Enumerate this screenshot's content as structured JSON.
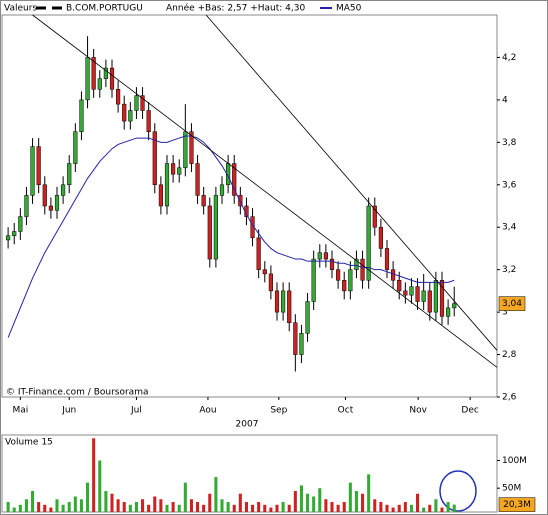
{
  "chart_data": [
    {
      "type": "candlestick",
      "legend_title": "Valeurs",
      "name": "B.COM.PORTUGU",
      "subtitle": "Année +Bas: 2,57 +Haut: 4,30",
      "source": "© IT-Finance.com / Boursorama",
      "xlabel": "2007",
      "up_color": "#33aa33",
      "down_color": "#cc2222",
      "x": [
        0,
        1,
        2,
        3,
        4,
        5,
        6,
        7,
        8,
        9,
        10,
        11,
        12,
        13,
        14,
        15,
        16,
        17,
        18,
        19,
        20,
        21,
        22,
        23,
        24,
        25,
        26,
        27,
        28,
        29,
        30,
        31,
        32,
        33,
        34,
        35,
        36,
        37,
        38,
        39,
        40,
        41,
        42,
        43,
        44,
        45,
        46,
        47,
        48,
        49,
        50,
        51,
        52,
        53,
        54,
        55,
        56,
        57,
        58,
        59,
        60,
        61,
        62,
        63,
        64,
        65,
        66,
        67,
        68,
        69,
        70,
        71,
        72,
        73
      ],
      "open": [
        3.34,
        3.36,
        3.38,
        3.45,
        3.55,
        3.78,
        3.6,
        3.5,
        3.48,
        3.55,
        3.6,
        3.7,
        3.85,
        4.0,
        4.2,
        4.05,
        4.1,
        4.15,
        4.05,
        3.98,
        3.9,
        3.95,
        4.02,
        3.95,
        3.85,
        3.6,
        3.5,
        3.7,
        3.65,
        3.68,
        3.85,
        3.7,
        3.55,
        3.5,
        3.25,
        3.55,
        3.6,
        3.7,
        3.55,
        3.5,
        3.45,
        3.35,
        3.2,
        3.18,
        3.1,
        3.0,
        3.1,
        2.95,
        2.8,
        2.9,
        3.05,
        3.25,
        3.28,
        3.25,
        3.2,
        3.15,
        3.1,
        3.2,
        3.25,
        3.15,
        3.5,
        3.4,
        3.3,
        3.2,
        3.15,
        3.1,
        3.08,
        3.12,
        3.05,
        3.1,
        3.0,
        3.15,
        2.98,
        3.02
      ],
      "high": [
        3.4,
        3.42,
        3.49,
        3.59,
        3.82,
        3.82,
        3.64,
        3.54,
        3.59,
        3.64,
        3.74,
        3.89,
        4.04,
        4.3,
        4.24,
        4.14,
        4.19,
        4.19,
        4.09,
        4.02,
        3.99,
        4.06,
        4.06,
        3.99,
        3.89,
        3.64,
        3.74,
        3.74,
        3.72,
        3.98,
        3.89,
        3.74,
        3.59,
        3.54,
        3.59,
        3.64,
        3.74,
        3.74,
        3.59,
        3.54,
        3.49,
        3.39,
        3.24,
        3.22,
        3.14,
        3.14,
        3.14,
        2.99,
        2.94,
        3.09,
        3.29,
        3.32,
        3.32,
        3.29,
        3.24,
        3.19,
        3.24,
        3.29,
        3.29,
        3.54,
        3.54,
        3.44,
        3.34,
        3.24,
        3.19,
        3.14,
        3.16,
        3.16,
        3.18,
        3.14,
        3.19,
        3.19,
        3.06,
        3.12
      ],
      "low": [
        3.3,
        3.32,
        3.34,
        3.41,
        3.51,
        3.56,
        3.46,
        3.44,
        3.44,
        3.51,
        3.56,
        3.66,
        3.81,
        3.96,
        4.01,
        4.01,
        4.06,
        4.01,
        3.94,
        3.86,
        3.86,
        3.91,
        3.91,
        3.81,
        3.56,
        3.46,
        3.46,
        3.61,
        3.61,
        3.64,
        3.66,
        3.51,
        3.46,
        3.21,
        3.21,
        3.51,
        3.56,
        3.51,
        3.46,
        3.41,
        3.31,
        3.16,
        3.14,
        3.06,
        2.96,
        2.96,
        2.91,
        2.72,
        2.76,
        2.86,
        3.01,
        3.21,
        3.21,
        3.16,
        3.11,
        3.06,
        3.06,
        3.16,
        3.11,
        3.11,
        3.36,
        3.26,
        3.16,
        3.11,
        3.06,
        3.04,
        3.04,
        3.01,
        3.01,
        2.96,
        2.96,
        2.94,
        2.94,
        2.98
      ],
      "close": [
        3.36,
        3.38,
        3.45,
        3.55,
        3.78,
        3.6,
        3.5,
        3.48,
        3.55,
        3.6,
        3.7,
        3.85,
        4.0,
        4.2,
        4.05,
        4.1,
        4.15,
        4.05,
        3.98,
        3.9,
        3.95,
        4.02,
        3.95,
        3.85,
        3.6,
        3.5,
        3.7,
        3.65,
        3.68,
        3.85,
        3.7,
        3.55,
        3.5,
        3.25,
        3.55,
        3.6,
        3.7,
        3.55,
        3.5,
        3.45,
        3.35,
        3.2,
        3.18,
        3.1,
        3.0,
        3.1,
        2.95,
        2.8,
        2.9,
        3.05,
        3.25,
        3.28,
        3.25,
        3.2,
        3.15,
        3.1,
        3.2,
        3.25,
        3.15,
        3.5,
        3.4,
        3.3,
        3.2,
        3.15,
        3.1,
        3.08,
        3.12,
        3.05,
        3.1,
        3.0,
        3.15,
        2.98,
        3.02,
        3.04
      ],
      "series": [
        {
          "name": "MA50",
          "color": "#2222aa",
          "values": [
            2.88,
            2.95,
            3.02,
            3.09,
            3.16,
            3.22,
            3.28,
            3.33,
            3.38,
            3.43,
            3.48,
            3.53,
            3.58,
            3.63,
            3.67,
            3.71,
            3.74,
            3.77,
            3.79,
            3.8,
            3.81,
            3.82,
            3.82,
            3.82,
            3.81,
            3.8,
            3.8,
            3.81,
            3.82,
            3.83,
            3.83,
            3.82,
            3.8,
            3.77,
            3.73,
            3.69,
            3.64,
            3.58,
            3.52,
            3.46,
            3.41,
            3.37,
            3.33,
            3.3,
            3.28,
            3.27,
            3.26,
            3.25,
            3.25,
            3.24,
            3.24,
            3.24,
            3.24,
            3.24,
            3.23,
            3.23,
            3.22,
            3.22,
            3.21,
            3.21,
            3.2,
            3.2,
            3.19,
            3.18,
            3.17,
            3.16,
            3.15,
            3.14,
            3.14,
            3.14,
            3.14,
            3.14,
            3.14,
            3.15
          ]
        }
      ],
      "trendlines": [
        {
          "x": [
            4,
            80
          ],
          "y": [
            4.4,
            2.74
          ]
        },
        {
          "x": [
            32.4,
            80
          ],
          "y": [
            4.4,
            2.82
          ]
        }
      ],
      "last_price": {
        "value": 3.04,
        "label": "3,04"
      },
      "xlim": [
        -1,
        80
      ],
      "xticks": [
        {
          "value": 2,
          "label": "Mai"
        },
        {
          "value": 10,
          "label": "Jun"
        },
        {
          "value": 21,
          "label": "Jul"
        },
        {
          "value": 32.7,
          "label": "Aou"
        },
        {
          "value": 44.3,
          "label": "Sep"
        },
        {
          "value": 55.2,
          "label": "Oct"
        },
        {
          "value": 67.1,
          "label": "Nov"
        },
        {
          "value": 75.6,
          "label": "Dec"
        }
      ],
      "ylim": [
        2.6,
        4.4
      ],
      "yticks": [
        {
          "value": 2.6,
          "label": "2,6"
        },
        {
          "value": 2.8,
          "label": "2,8"
        },
        {
          "value": 3,
          "label": "3"
        },
        {
          "value": 3.2,
          "label": "3,2"
        },
        {
          "value": 3.4,
          "label": "3,4"
        },
        {
          "value": 3.6,
          "label": "3,6"
        },
        {
          "value": 3.8,
          "label": "3,8"
        },
        {
          "value": 4,
          "label": "4"
        },
        {
          "value": 4.2,
          "label": "4,2"
        }
      ],
      "grid": false
    },
    {
      "type": "bar",
      "title": "Volume 15",
      "x": [
        0,
        1,
        2,
        3,
        4,
        5,
        6,
        7,
        8,
        9,
        10,
        11,
        12,
        13,
        14,
        15,
        16,
        17,
        18,
        19,
        20,
        21,
        22,
        23,
        24,
        25,
        26,
        27,
        28,
        29,
        30,
        31,
        32,
        33,
        34,
        35,
        36,
        37,
        38,
        39,
        40,
        41,
        42,
        43,
        44,
        45,
        46,
        47,
        48,
        49,
        50,
        51,
        52,
        53,
        54,
        55,
        56,
        57,
        58,
        59,
        60,
        61,
        62,
        63,
        64,
        65,
        66,
        67,
        68,
        69,
        70,
        71,
        72,
        73
      ],
      "values": [
        25,
        15,
        20,
        30,
        45,
        25,
        20,
        15,
        30,
        20,
        25,
        35,
        30,
        60,
        140,
        100,
        45,
        40,
        30,
        25,
        20,
        25,
        30,
        20,
        35,
        30,
        20,
        25,
        20,
        60,
        30,
        25,
        20,
        40,
        70,
        30,
        25,
        20,
        40,
        25,
        20,
        25,
        20,
        15,
        20,
        25,
        20,
        45,
        55,
        40,
        35,
        50,
        30,
        25,
        20,
        25,
        60,
        45,
        40,
        75,
        30,
        25,
        20,
        15,
        20,
        25,
        20,
        40,
        15,
        20,
        30,
        15,
        25,
        20.3
      ],
      "last_volume": {
        "value": 20.3,
        "label": "20,3M"
      },
      "xlim": [
        -1,
        80
      ],
      "ylim": [
        7,
        146
      ],
      "yticks": [
        {
          "value": 50,
          "label": "50M"
        },
        {
          "value": 100,
          "label": "100M"
        }
      ]
    }
  ]
}
